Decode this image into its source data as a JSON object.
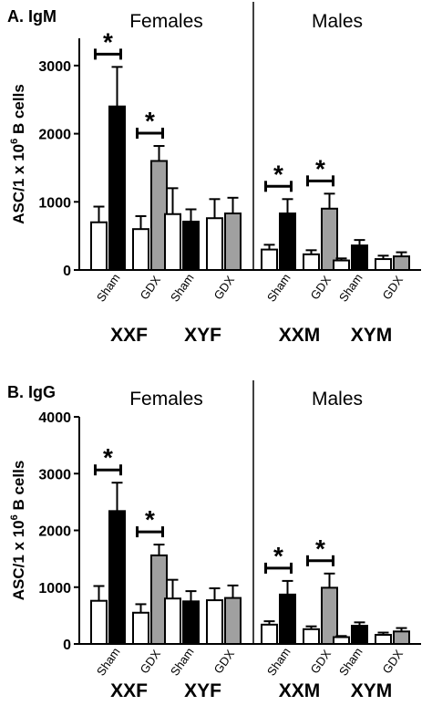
{
  "chart_data": [
    {
      "type": "bar",
      "panel_label": "A. IgM",
      "ylabel_main": "ASC/1 x 10",
      "ylabel_sup": "6",
      "ylabel_tail": " B cells",
      "ylim": [
        0,
        3400
      ],
      "yticks": [
        0,
        1000,
        2000,
        3000
      ],
      "sections": [
        "Females",
        "Males"
      ],
      "genotypes": [
        "XXF",
        "XYF",
        "XXM",
        "XYM"
      ],
      "treatments": [
        "Sham",
        "GDX"
      ],
      "bars": [
        {
          "genotype": "XXF",
          "treatment": "Sham",
          "fill": "white",
          "value": 700,
          "error": 230
        },
        {
          "genotype": "XXF",
          "treatment": "Sham",
          "fill": "black",
          "value": 2400,
          "error": 580
        },
        {
          "genotype": "XXF",
          "treatment": "GDX",
          "fill": "white",
          "value": 600,
          "error": 190
        },
        {
          "genotype": "XXF",
          "treatment": "GDX",
          "fill": "gray",
          "value": 1600,
          "error": 220
        },
        {
          "genotype": "XYF",
          "treatment": "Sham",
          "fill": "white",
          "value": 820,
          "error": 380
        },
        {
          "genotype": "XYF",
          "treatment": "Sham",
          "fill": "black",
          "value": 710,
          "error": 180
        },
        {
          "genotype": "XYF",
          "treatment": "GDX",
          "fill": "white",
          "value": 760,
          "error": 280
        },
        {
          "genotype": "XYF",
          "treatment": "GDX",
          "fill": "gray",
          "value": 830,
          "error": 230
        },
        {
          "genotype": "XXM",
          "treatment": "Sham",
          "fill": "white",
          "value": 300,
          "error": 70
        },
        {
          "genotype": "XXM",
          "treatment": "Sham",
          "fill": "black",
          "value": 830,
          "error": 210
        },
        {
          "genotype": "XXM",
          "treatment": "GDX",
          "fill": "white",
          "value": 230,
          "error": 60
        },
        {
          "genotype": "XXM",
          "treatment": "GDX",
          "fill": "gray",
          "value": 900,
          "error": 220
        },
        {
          "genotype": "XYM",
          "treatment": "Sham",
          "fill": "white",
          "value": 140,
          "error": 30
        },
        {
          "genotype": "XYM",
          "treatment": "Sham",
          "fill": "black",
          "value": 360,
          "error": 80
        },
        {
          "genotype": "XYM",
          "treatment": "GDX",
          "fill": "white",
          "value": 160,
          "error": 50
        },
        {
          "genotype": "XYM",
          "treatment": "GDX",
          "fill": "gray",
          "value": 200,
          "error": 60
        }
      ],
      "significance": [
        {
          "bars": [
            0,
            1
          ],
          "label": "*"
        },
        {
          "bars": [
            2,
            3
          ],
          "label": "*"
        },
        {
          "bars": [
            8,
            9
          ],
          "label": "*"
        },
        {
          "bars": [
            10,
            11
          ],
          "label": "*"
        }
      ]
    },
    {
      "type": "bar",
      "panel_label": "B. IgG",
      "ylabel_main": "ASC/1 x 10",
      "ylabel_sup": "6",
      "ylabel_tail": " B cells",
      "ylim": [
        0,
        4000
      ],
      "yticks": [
        0,
        1000,
        2000,
        3000,
        4000
      ],
      "sections": [
        "Females",
        "Males"
      ],
      "genotypes": [
        "XXF",
        "XYF",
        "XXM",
        "XYM"
      ],
      "treatments": [
        "Sham",
        "GDX"
      ],
      "bars": [
        {
          "genotype": "XXF",
          "treatment": "Sham",
          "fill": "white",
          "value": 760,
          "error": 260
        },
        {
          "genotype": "XXF",
          "treatment": "Sham",
          "fill": "black",
          "value": 2340,
          "error": 500
        },
        {
          "genotype": "XXF",
          "treatment": "GDX",
          "fill": "white",
          "value": 550,
          "error": 150
        },
        {
          "genotype": "XXF",
          "treatment": "GDX",
          "fill": "gray",
          "value": 1560,
          "error": 190
        },
        {
          "genotype": "XYF",
          "treatment": "Sham",
          "fill": "white",
          "value": 800,
          "error": 330
        },
        {
          "genotype": "XYF",
          "treatment": "Sham",
          "fill": "black",
          "value": 750,
          "error": 180
        },
        {
          "genotype": "XYF",
          "treatment": "GDX",
          "fill": "white",
          "value": 770,
          "error": 210
        },
        {
          "genotype": "XYF",
          "treatment": "GDX",
          "fill": "gray",
          "value": 810,
          "error": 220
        },
        {
          "genotype": "XXM",
          "treatment": "Sham",
          "fill": "white",
          "value": 340,
          "error": 60
        },
        {
          "genotype": "XXM",
          "treatment": "Sham",
          "fill": "black",
          "value": 870,
          "error": 240
        },
        {
          "genotype": "XXM",
          "treatment": "GDX",
          "fill": "white",
          "value": 260,
          "error": 50
        },
        {
          "genotype": "XXM",
          "treatment": "GDX",
          "fill": "gray",
          "value": 990,
          "error": 250
        },
        {
          "genotype": "XYM",
          "treatment": "Sham",
          "fill": "white",
          "value": 120,
          "error": 20
        },
        {
          "genotype": "XYM",
          "treatment": "Sham",
          "fill": "black",
          "value": 320,
          "error": 60
        },
        {
          "genotype": "XYM",
          "treatment": "GDX",
          "fill": "white",
          "value": 160,
          "error": 40
        },
        {
          "genotype": "XYM",
          "treatment": "GDX",
          "fill": "gray",
          "value": 220,
          "error": 60
        }
      ],
      "significance": [
        {
          "bars": [
            0,
            1
          ],
          "label": "*"
        },
        {
          "bars": [
            2,
            3
          ],
          "label": "*"
        },
        {
          "bars": [
            8,
            9
          ],
          "label": "*"
        },
        {
          "bars": [
            10,
            11
          ],
          "label": "*"
        }
      ]
    }
  ],
  "colors": {
    "white": "#ffffff",
    "black": "#000000",
    "gray": "#a0a0a0",
    "axis": "#000000"
  }
}
